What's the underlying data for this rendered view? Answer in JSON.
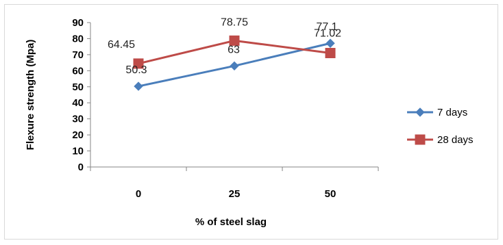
{
  "chart_data": {
    "type": "line",
    "categories": [
      "0",
      "25",
      "50"
    ],
    "series": [
      {
        "name": "7 days",
        "values": [
          50.3,
          63,
          77.1
        ],
        "data_labels": [
          "50.3",
          "63",
          "77.1"
        ],
        "color": "#4a7ebb",
        "marker": "diamond"
      },
      {
        "name": "28 days",
        "values": [
          64.45,
          78.75,
          71.02
        ],
        "data_labels": [
          "64.45",
          "78.75",
          "71.02"
        ],
        "color": "#be4b48",
        "marker": "square"
      }
    ],
    "title": "",
    "xlabel": "% of steel slag",
    "ylabel": "Flexure strength (Mpa)",
    "ylim": [
      0,
      90
    ],
    "yticks": [
      "0",
      "10",
      "20",
      "30",
      "40",
      "50",
      "60",
      "70",
      "80",
      "90"
    ],
    "grid": false,
    "legend_position": "right"
  }
}
